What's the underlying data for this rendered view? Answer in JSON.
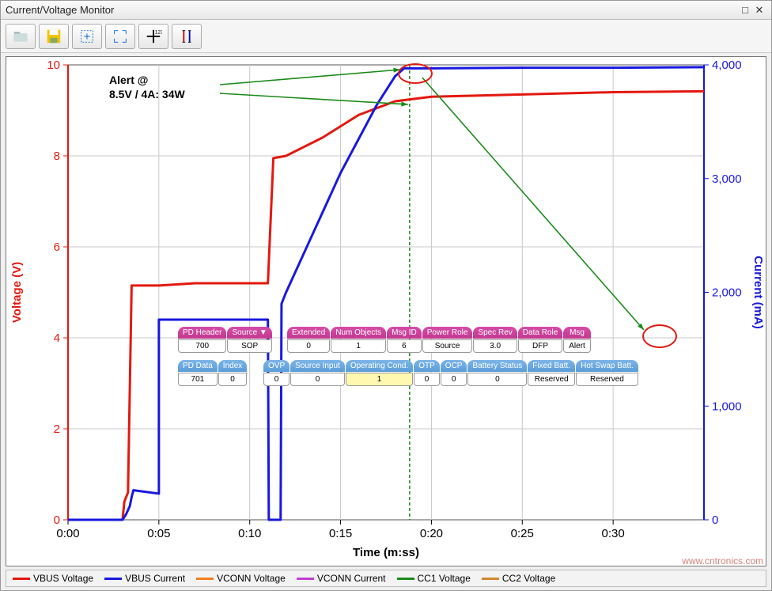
{
  "window": {
    "title": "Current/Voltage Monitor"
  },
  "annotation": {
    "line1": "Alert @",
    "line2": "8.5V / 4A:  34W"
  },
  "chart": {
    "type": "line-dual-axis",
    "background_color": "#ffffff",
    "grid_color": "#c8c8c8",
    "border_color": "#555555",
    "xlabel": "Time (m:ss)",
    "xlabel_fontsize": 15,
    "xlabel_weight": "bold",
    "ylabel_left": "Voltage (V)",
    "ylabel_left_color": "#e3180f",
    "ylabel_right": "Current (mA)",
    "ylabel_right_color": "#1818e0",
    "xlim": [
      0,
      35
    ],
    "xtick_step": 5,
    "xticks": [
      "0:00",
      "0:05",
      "0:10",
      "0:15",
      "0:20",
      "0:25",
      "0:30"
    ],
    "ylim_left": [
      0,
      10
    ],
    "ytick_left_step": 2,
    "yticks_left": [
      "0",
      "2",
      "4",
      "6",
      "8",
      "10"
    ],
    "ylim_right": [
      0,
      4000
    ],
    "ytick_right_step": 1000,
    "yticks_right": [
      "0",
      "1,000",
      "2,000",
      "3,000",
      "4,000"
    ],
    "axis_fontsize": 15,
    "line_width": 3,
    "cursor_x": 18.8,
    "cursor_color": "#1a8a1a",
    "cursor_dash": "4 3",
    "series": [
      {
        "name": "VBUS Voltage",
        "axis": "left",
        "color": "#e3180f",
        "points": [
          [
            0,
            0
          ],
          [
            3,
            0
          ],
          [
            3.1,
            0.4
          ],
          [
            3.3,
            0.6
          ],
          [
            3.5,
            5.15
          ],
          [
            5,
            5.15
          ],
          [
            7,
            5.2
          ],
          [
            11,
            5.2
          ],
          [
            11.3,
            7.95
          ],
          [
            12,
            8.0
          ],
          [
            14,
            8.4
          ],
          [
            16,
            8.9
          ],
          [
            18,
            9.2
          ],
          [
            20,
            9.3
          ],
          [
            25,
            9.35
          ],
          [
            30,
            9.4
          ],
          [
            35,
            9.42
          ]
        ]
      },
      {
        "name": "VBUS Current",
        "axis": "right",
        "color": "#1818e0",
        "points": [
          [
            0,
            0
          ],
          [
            3,
            0
          ],
          [
            3.2,
            50
          ],
          [
            3.4,
            120
          ],
          [
            3.5,
            200
          ],
          [
            3.6,
            260
          ],
          [
            5,
            230
          ],
          [
            5.0,
            1760
          ],
          [
            5.2,
            1760
          ],
          [
            7,
            1760
          ],
          [
            9,
            1760
          ],
          [
            11,
            1760
          ],
          [
            11.05,
            0
          ],
          [
            11.7,
            0
          ],
          [
            11.75,
            1900
          ],
          [
            12,
            2000
          ],
          [
            13,
            2350
          ],
          [
            14,
            2700
          ],
          [
            15,
            3050
          ],
          [
            16,
            3350
          ],
          [
            17,
            3650
          ],
          [
            18,
            3900
          ],
          [
            18.5,
            3970
          ],
          [
            20,
            3970
          ],
          [
            25,
            3975
          ],
          [
            30,
            3975
          ],
          [
            35,
            3980
          ]
        ]
      }
    ],
    "legend_items": [
      {
        "label": "VBUS Voltage",
        "color": "#e3180f"
      },
      {
        "label": "VBUS Current",
        "color": "#1818e0"
      },
      {
        "label": "VCONN Voltage",
        "color": "#f08020"
      },
      {
        "label": "VCONN Current",
        "color": "#c040d0"
      },
      {
        "label": "CC1 Voltage",
        "color": "#1a8a1a"
      },
      {
        "label": "CC2 Voltage",
        "color": "#d08830"
      }
    ]
  },
  "tables": {
    "row1a": {
      "headers": [
        "PD Header",
        "Source ▼"
      ],
      "cells": [
        "700",
        "SOP"
      ]
    },
    "row1b": {
      "headers": [
        "Extended",
        "Num Objects",
        "Msg ID",
        "Power Role",
        "Spec Rev",
        "Data Role",
        "Msg"
      ],
      "cells": [
        "0",
        "1",
        "6",
        "Source",
        "3.0",
        "DFP",
        "Alert"
      ]
    },
    "row2a": {
      "headers": [
        "PD Data",
        "Index"
      ],
      "cells": [
        "701",
        "0"
      ]
    },
    "row2b": {
      "headers": [
        "OVP",
        "Source Input",
        "Operating Cond.",
        "OTP",
        "OCP",
        "Battery Status",
        "Fixed Batt.",
        "Hot Swap Batt."
      ],
      "cells": [
        "0",
        "0",
        "1",
        "0",
        "0",
        "0",
        "Reserved",
        "Reserved"
      ],
      "highlight_col": 2
    }
  },
  "watermark": "www.cntronics.com"
}
